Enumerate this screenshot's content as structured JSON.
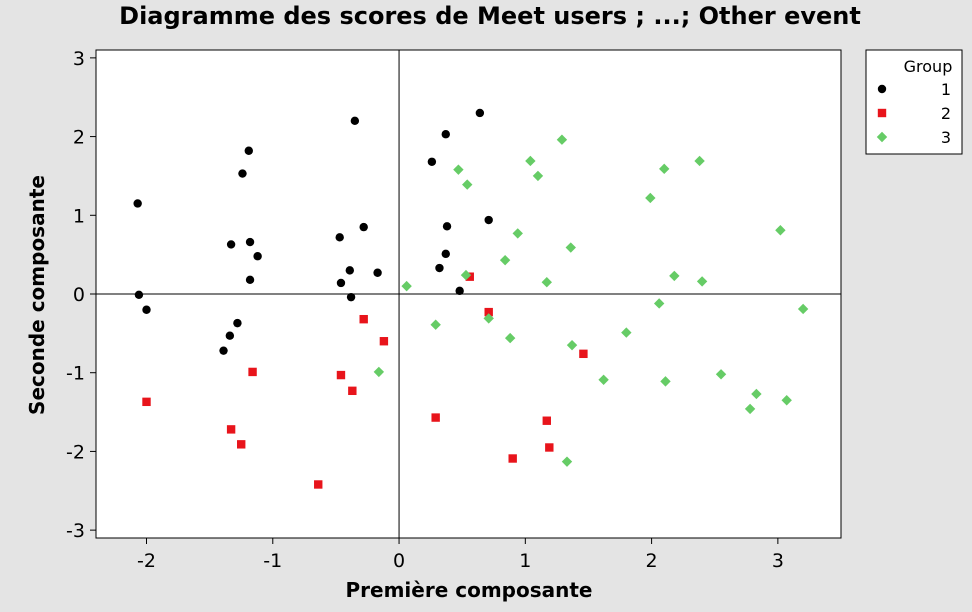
{
  "chart_data": {
    "type": "scatter",
    "title": "Diagramme des scores de Meet users ; ...; Other event",
    "xlabel": "Première composante",
    "ylabel": "Seconde composante",
    "xlim": [
      -2.4,
      3.5
    ],
    "ylim": [
      -3.1,
      3.1
    ],
    "xticks": [
      -2,
      -1,
      0,
      1,
      2,
      3
    ],
    "xtick_labels": [
      "-2",
      "-1",
      "0",
      "1",
      "2",
      "3"
    ],
    "yticks": [
      3,
      2,
      1,
      0,
      -1,
      -2,
      -3
    ],
    "ytick_labels": [
      "3",
      "2",
      "1",
      "0",
      "-1",
      "-2",
      "-3"
    ],
    "reference_lines": {
      "x": 0,
      "y": 0
    },
    "grid": false,
    "legend": {
      "title": "Group",
      "placement": "right"
    },
    "series": [
      {
        "name": "1",
        "marker": "circle",
        "color": "#000000",
        "points": [
          [
            -2.07,
            1.15
          ],
          [
            -2.06,
            -0.01
          ],
          [
            -2.0,
            -0.2
          ],
          [
            -1.19,
            1.82
          ],
          [
            -1.24,
            1.53
          ],
          [
            -1.18,
            0.66
          ],
          [
            -1.33,
            0.63
          ],
          [
            -1.12,
            0.48
          ],
          [
            -1.18,
            0.18
          ],
          [
            -1.28,
            -0.37
          ],
          [
            -1.34,
            -0.53
          ],
          [
            -1.39,
            -0.72
          ],
          [
            -0.35,
            2.2
          ],
          [
            -0.28,
            0.85
          ],
          [
            -0.47,
            0.72
          ],
          [
            -0.39,
            0.3
          ],
          [
            -0.46,
            0.14
          ],
          [
            -0.38,
            -0.04
          ],
          [
            -0.17,
            0.27
          ],
          [
            0.64,
            2.3
          ],
          [
            0.37,
            2.03
          ],
          [
            0.26,
            1.68
          ],
          [
            0.71,
            0.94
          ],
          [
            0.38,
            0.86
          ],
          [
            0.37,
            0.51
          ],
          [
            0.32,
            0.33
          ],
          [
            0.48,
            0.04
          ]
        ]
      },
      {
        "name": "2",
        "marker": "square",
        "color": "#e8141b",
        "points": [
          [
            -2.0,
            -1.37
          ],
          [
            -1.16,
            -0.99
          ],
          [
            -1.33,
            -1.72
          ],
          [
            -1.25,
            -1.91
          ],
          [
            -0.64,
            -2.42
          ],
          [
            -0.46,
            -1.03
          ],
          [
            -0.37,
            -1.23
          ],
          [
            -0.28,
            -0.32
          ],
          [
            -0.12,
            -0.6
          ],
          [
            0.29,
            -1.57
          ],
          [
            0.56,
            0.22
          ],
          [
            0.71,
            -0.23
          ],
          [
            0.9,
            -2.09
          ],
          [
            1.17,
            -1.61
          ],
          [
            1.19,
            -1.95
          ],
          [
            1.46,
            -0.76
          ]
        ]
      },
      {
        "name": "3",
        "marker": "diamond",
        "color": "#66cc66",
        "points": [
          [
            -0.16,
            -0.99
          ],
          [
            0.06,
            0.1
          ],
          [
            0.29,
            -0.39
          ],
          [
            0.47,
            1.58
          ],
          [
            0.54,
            1.39
          ],
          [
            0.53,
            0.24
          ],
          [
            0.71,
            -0.31
          ],
          [
            0.84,
            0.43
          ],
          [
            0.88,
            -0.56
          ],
          [
            0.94,
            0.77
          ],
          [
            1.04,
            1.69
          ],
          [
            1.1,
            1.5
          ],
          [
            1.17,
            0.15
          ],
          [
            1.29,
            1.96
          ],
          [
            1.36,
            0.59
          ],
          [
            1.37,
            -0.65
          ],
          [
            1.33,
            -2.13
          ],
          [
            1.62,
            -1.09
          ],
          [
            1.8,
            -0.49
          ],
          [
            1.99,
            1.22
          ],
          [
            2.06,
            -0.12
          ],
          [
            2.1,
            1.59
          ],
          [
            2.11,
            -1.11
          ],
          [
            2.18,
            0.23
          ],
          [
            2.38,
            1.69
          ],
          [
            2.4,
            0.16
          ],
          [
            2.55,
            -1.02
          ],
          [
            2.78,
            -1.46
          ],
          [
            2.83,
            -1.27
          ],
          [
            3.02,
            0.81
          ],
          [
            3.07,
            -1.35
          ],
          [
            3.2,
            -0.19
          ]
        ]
      }
    ]
  }
}
